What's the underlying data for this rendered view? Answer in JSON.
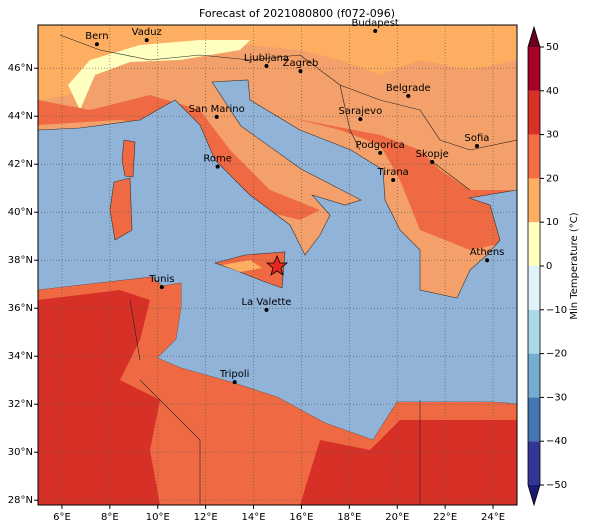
{
  "title": "Forecast of 2021080800 (f072-096)",
  "map": {
    "xlim": [
      5,
      25
    ],
    "ylim": [
      27.8,
      47.8
    ],
    "xticks": [
      {
        "value": 6,
        "label": "6°E"
      },
      {
        "value": 8,
        "label": "8°E"
      },
      {
        "value": 10,
        "label": "10°E"
      },
      {
        "value": 12,
        "label": "12°E"
      },
      {
        "value": 14,
        "label": "14°E"
      },
      {
        "value": 16,
        "label": "16°E"
      },
      {
        "value": 18,
        "label": "18°E"
      },
      {
        "value": 20,
        "label": "20°E"
      },
      {
        "value": 22,
        "label": "22°E"
      },
      {
        "value": 24,
        "label": "24°E"
      }
    ],
    "yticks": [
      {
        "value": 28,
        "label": "28°N"
      },
      {
        "value": 30,
        "label": "30°N"
      },
      {
        "value": 32,
        "label": "32°N"
      },
      {
        "value": 34,
        "label": "34°N"
      },
      {
        "value": 36,
        "label": "36°N"
      },
      {
        "value": 38,
        "label": "38°N"
      },
      {
        "value": 40,
        "label": "40°N"
      },
      {
        "value": 42,
        "label": "42°N"
      },
      {
        "value": 44,
        "label": "44°N"
      },
      {
        "value": 46,
        "label": "46°N"
      }
    ],
    "grid": true,
    "cities": [
      {
        "name": "Bern",
        "lon": 7.46,
        "lat": 47.0
      },
      {
        "name": "Vaduz",
        "lon": 9.54,
        "lat": 47.17
      },
      {
        "name": "Budapest",
        "lon": 19.08,
        "lat": 47.55
      },
      {
        "name": "Ljubljana",
        "lon": 14.54,
        "lat": 46.09
      },
      {
        "name": "Zagreb",
        "lon": 15.96,
        "lat": 45.88
      },
      {
        "name": "Belgrade",
        "lon": 20.46,
        "lat": 44.84
      },
      {
        "name": "San Marino",
        "lon": 12.46,
        "lat": 43.97
      },
      {
        "name": "Sarajevo",
        "lon": 18.46,
        "lat": 43.88
      },
      {
        "name": "Sofia",
        "lon": 23.33,
        "lat": 42.76
      },
      {
        "name": "Podgorica",
        "lon": 19.29,
        "lat": 42.47
      },
      {
        "name": "Skopje",
        "lon": 21.46,
        "lat": 42.09
      },
      {
        "name": "Rome",
        "lon": 12.5,
        "lat": 41.9
      },
      {
        "name": "Tirana",
        "lon": 19.83,
        "lat": 41.34
      },
      {
        "name": "Athens",
        "lon": 23.75,
        "lat": 38.0
      },
      {
        "name": "Tunis",
        "lon": 10.17,
        "lat": 36.88
      },
      {
        "name": "La Valette",
        "lon": 14.54,
        "lat": 35.93
      },
      {
        "name": "Tripoli",
        "lon": 13.21,
        "lat": 32.92
      }
    ]
  },
  "colorbar": {
    "label": "Min Temperature (°C)",
    "lim": [
      -50,
      50
    ],
    "ticks": [
      {
        "value": -50,
        "label": "−50"
      },
      {
        "value": -40,
        "label": "−40"
      },
      {
        "value": -30,
        "label": "−30"
      },
      {
        "value": -20,
        "label": "−20"
      },
      {
        "value": -10,
        "label": "−10"
      },
      0,
      10,
      20,
      30,
      40,
      50
    ],
    "colors": [
      "#313695",
      "#4575b4",
      "#74add1",
      "#abd9e9",
      "#e0f3f8",
      "#ffffbf",
      "#fdae61",
      "#f46d43",
      "#d73027",
      "#a50026"
    ],
    "under": "#1a1a6e",
    "over": "#67001f"
  }
}
